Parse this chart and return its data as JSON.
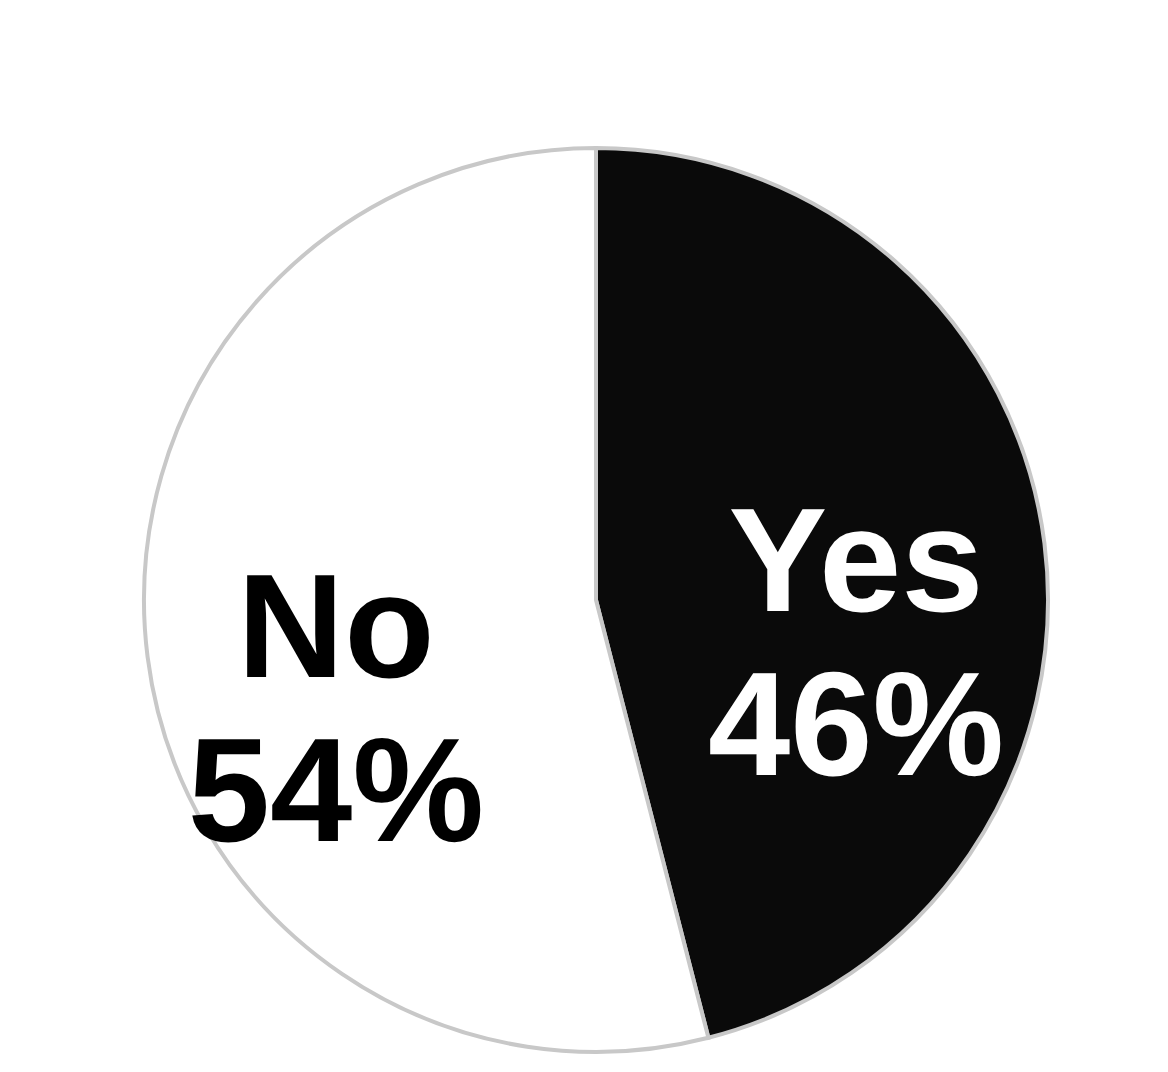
{
  "chart_data": {
    "type": "pie",
    "categories": [
      "Yes",
      "No"
    ],
    "values": [
      46,
      54
    ],
    "colors": [
      "#0a0a0a",
      "#ffffff"
    ],
    "value_labels": [
      "46%",
      "54%"
    ],
    "legend": false
  }
}
